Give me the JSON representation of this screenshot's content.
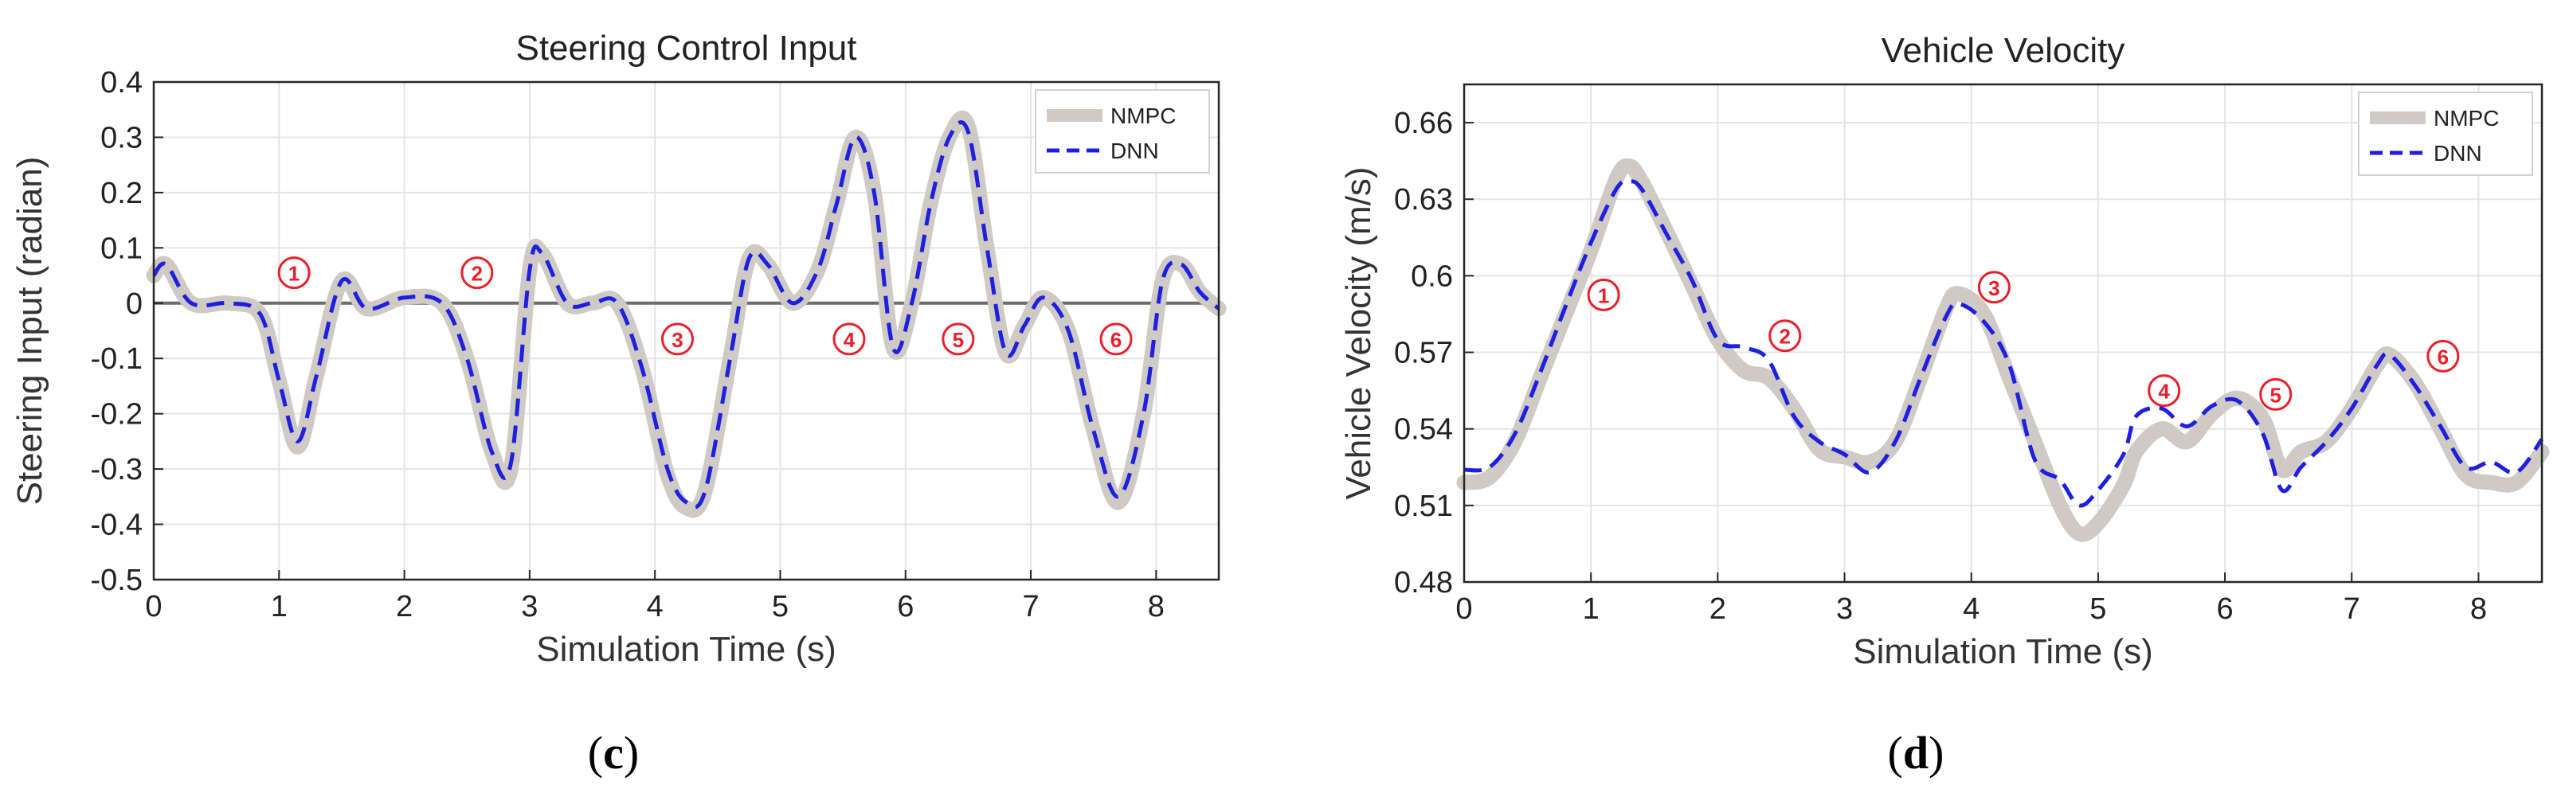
{
  "figure": {
    "captions": [
      {
        "open": "(",
        "letter": "c",
        "close": ")"
      },
      {
        "open": "(",
        "letter": "d",
        "close": ")"
      }
    ],
    "colors": {
      "nmpc": "#cfcac4",
      "dnn": "#1f1fe0",
      "marker": "#e8202a",
      "zero_line": "#6e6e6e",
      "grid": "#e4e4e4"
    }
  },
  "chart_data": [
    {
      "type": "line",
      "title": "Steering Control Input",
      "xlabel": "Simulation Time (s)",
      "ylabel": "Steering Input (radian)",
      "xlim": [
        0,
        8.5
      ],
      "ylim": [
        -0.5,
        0.4
      ],
      "xticks": [
        0,
        1,
        2,
        3,
        4,
        5,
        6,
        7,
        8
      ],
      "xtick_labels": [
        "0",
        "1",
        "2",
        "3",
        "4",
        "5",
        "6",
        "7",
        "8"
      ],
      "yticks": [
        0.4,
        0.3,
        0.2,
        0.1,
        0,
        -0.1,
        -0.2,
        -0.3,
        -0.4,
        -0.5
      ],
      "ytick_labels": [
        "0.4",
        "0.3",
        "0.2",
        "0.1",
        "0",
        "-0.1",
        "-0.2",
        "-0.3",
        "-0.4",
        "-0.5"
      ],
      "grid": true,
      "legend_position": "top-right",
      "legend": [
        "NMPC",
        "DNN"
      ],
      "reference_line": 0,
      "x": [
        0,
        0.1,
        0.3,
        0.6,
        0.85,
        1.0,
        1.15,
        1.3,
        1.5,
        1.7,
        2.0,
        2.3,
        2.5,
        2.7,
        2.85,
        3.0,
        3.1,
        3.3,
        3.5,
        3.7,
        3.9,
        4.1,
        4.25,
        4.4,
        4.6,
        4.75,
        4.9,
        5.1,
        5.3,
        5.45,
        5.6,
        5.75,
        5.9,
        6.05,
        6.2,
        6.35,
        6.5,
        6.65,
        6.8,
        6.95,
        7.1,
        7.3,
        7.5,
        7.7,
        7.9,
        8.05,
        8.2,
        8.35,
        8.5
      ],
      "series": [
        {
          "name": "NMPC",
          "values": [
            0.05,
            0.07,
            0.0,
            0.0,
            -0.02,
            -0.14,
            -0.26,
            -0.13,
            0.04,
            -0.01,
            0.01,
            0.0,
            -0.1,
            -0.27,
            -0.3,
            0.06,
            0.09,
            0.0,
            0.0,
            0.0,
            -0.12,
            -0.31,
            -0.37,
            -0.34,
            -0.1,
            0.08,
            0.07,
            0.0,
            0.06,
            0.18,
            0.3,
            0.2,
            -0.08,
            0.0,
            0.18,
            0.3,
            0.32,
            0.1,
            -0.09,
            -0.04,
            0.01,
            -0.05,
            -0.23,
            -0.36,
            -0.2,
            0.04,
            0.07,
            0.02,
            -0.01
          ]
        },
        {
          "name": "DNN",
          "values": [
            0.05,
            0.07,
            0.0,
            0.0,
            -0.02,
            -0.14,
            -0.25,
            -0.13,
            0.04,
            -0.01,
            0.01,
            0.0,
            -0.1,
            -0.27,
            -0.29,
            0.06,
            0.09,
            0.0,
            0.0,
            0.0,
            -0.12,
            -0.3,
            -0.36,
            -0.34,
            -0.1,
            0.08,
            0.07,
            0.0,
            0.06,
            0.18,
            0.3,
            0.2,
            -0.08,
            0.0,
            0.18,
            0.3,
            0.31,
            0.1,
            -0.09,
            -0.04,
            0.01,
            -0.05,
            -0.23,
            -0.35,
            -0.2,
            0.04,
            0.07,
            0.02,
            -0.01
          ]
        }
      ],
      "annotations": [
        {
          "text": "①",
          "x": 1.12,
          "y": 0.055
        },
        {
          "text": "②",
          "x": 2.58,
          "y": 0.055
        },
        {
          "text": "③",
          "x": 4.18,
          "y": -0.065
        },
        {
          "text": "④",
          "x": 5.55,
          "y": -0.065
        },
        {
          "text": "⑤",
          "x": 6.42,
          "y": -0.065
        },
        {
          "text": "⑥",
          "x": 7.68,
          "y": -0.065
        }
      ]
    },
    {
      "type": "line",
      "title": "Vehicle Velocity",
      "xlabel": "Simulation Time (s)",
      "ylabel": "Vehicle Velocity (m/s)",
      "xlim": [
        0,
        8.5
      ],
      "ylim": [
        0.48,
        0.675
      ],
      "xticks": [
        0,
        1,
        2,
        3,
        4,
        5,
        6,
        7,
        8
      ],
      "xtick_labels": [
        "0",
        "1",
        "2",
        "3",
        "4",
        "5",
        "6",
        "7",
        "8"
      ],
      "yticks": [
        0.66,
        0.63,
        0.6,
        0.57,
        0.54,
        0.51,
        0.48
      ],
      "ytick_labels": [
        "0.66",
        "0.63",
        "0.6",
        "0.57",
        "0.54",
        "0.51",
        "0.48"
      ],
      "grid": true,
      "legend_position": "top-right",
      "legend": [
        "NMPC",
        "DNN"
      ],
      "x": [
        0,
        0.2,
        0.4,
        0.6,
        0.8,
        1.0,
        1.2,
        1.3,
        1.4,
        1.6,
        1.8,
        2.0,
        2.2,
        2.4,
        2.6,
        2.8,
        3.0,
        3.2,
        3.4,
        3.6,
        3.8,
        3.9,
        4.1,
        4.3,
        4.5,
        4.7,
        4.85,
        5.0,
        5.2,
        5.3,
        5.5,
        5.7,
        5.9,
        6.1,
        6.3,
        6.45,
        6.6,
        6.8,
        7.0,
        7.2,
        7.3,
        7.5,
        7.7,
        7.9,
        8.1,
        8.3,
        8.5
      ],
      "series": [
        {
          "name": "NMPC",
          "values": [
            0.519,
            0.521,
            0.535,
            0.56,
            0.585,
            0.61,
            0.638,
            0.643,
            0.637,
            0.617,
            0.596,
            0.575,
            0.563,
            0.56,
            0.548,
            0.532,
            0.529,
            0.527,
            0.535,
            0.56,
            0.587,
            0.593,
            0.585,
            0.56,
            0.535,
            0.51,
            0.499,
            0.503,
            0.518,
            0.531,
            0.54,
            0.535,
            0.546,
            0.552,
            0.544,
            0.524,
            0.531,
            0.535,
            0.548,
            0.565,
            0.569,
            0.558,
            0.54,
            0.522,
            0.519,
            0.519,
            0.531
          ]
        },
        {
          "name": "DNN",
          "values": [
            0.524,
            0.525,
            0.538,
            0.562,
            0.588,
            0.613,
            0.634,
            0.637,
            0.634,
            0.616,
            0.598,
            0.575,
            0.572,
            0.567,
            0.545,
            0.535,
            0.53,
            0.523,
            0.535,
            0.56,
            0.584,
            0.589,
            0.582,
            0.565,
            0.528,
            0.52,
            0.51,
            0.516,
            0.53,
            0.545,
            0.548,
            0.541,
            0.549,
            0.551,
            0.538,
            0.516,
            0.525,
            0.535,
            0.548,
            0.565,
            0.569,
            0.557,
            0.541,
            0.525,
            0.527,
            0.523,
            0.536
          ]
        }
      ],
      "annotations": [
        {
          "text": "①",
          "x": 1.1,
          "y": 0.5925
        },
        {
          "text": "②",
          "x": 2.53,
          "y": 0.5765
        },
        {
          "text": "③",
          "x": 4.18,
          "y": 0.5955
        },
        {
          "text": "④",
          "x": 5.52,
          "y": 0.555
        },
        {
          "text": "⑤",
          "x": 6.4,
          "y": 0.5535
        },
        {
          "text": "⑥",
          "x": 7.72,
          "y": 0.5685
        }
      ]
    }
  ]
}
